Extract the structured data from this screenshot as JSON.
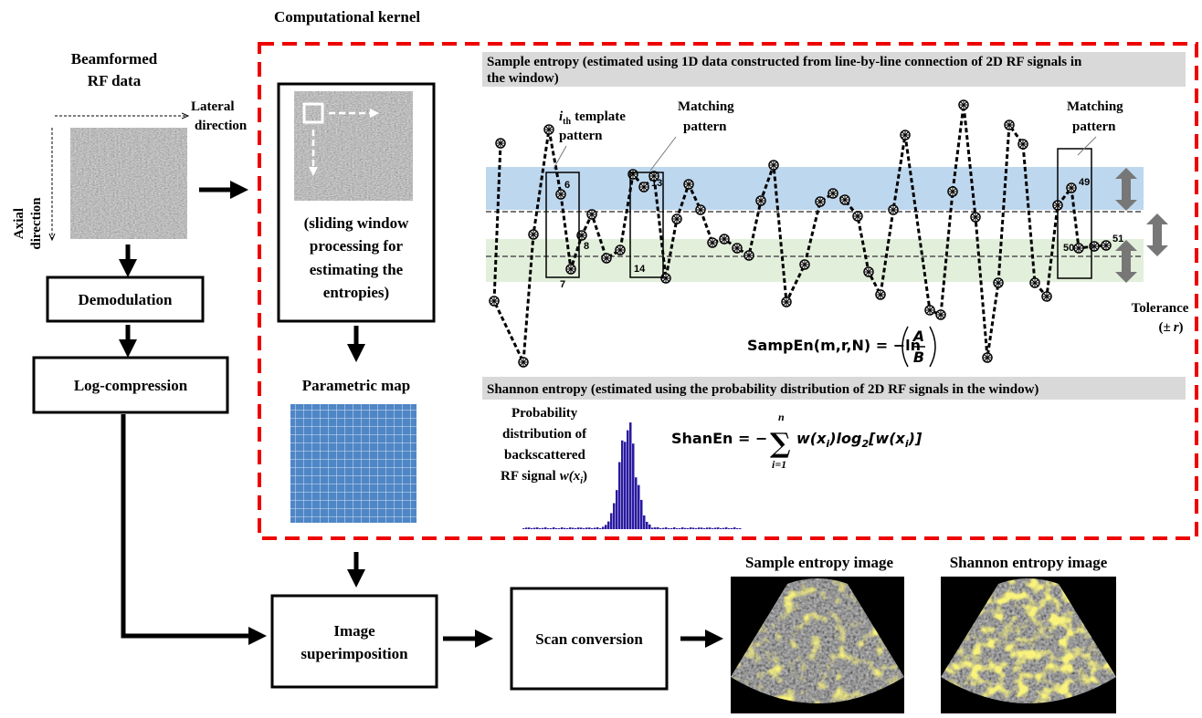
{
  "title": "Computational kernel",
  "input": {
    "title": [
      "Beamformed",
      "RF data"
    ],
    "lateral": [
      "Lateral",
      "direction"
    ],
    "axial": [
      "Axial",
      "direction"
    ]
  },
  "steps": {
    "demodulation": "Demodulation",
    "log_compression": "Log-compression",
    "superimposition": [
      "Image",
      "superimposition"
    ],
    "scan_conversion": "Scan conversion"
  },
  "kernel": {
    "sliding_window": [
      "(sliding window",
      "processing for",
      "estimating the",
      "entropies)"
    ],
    "parametric_map": "Parametric map"
  },
  "sample_entropy": {
    "header": [
      "Sample entropy (estimated using 1D data constructed from line-by-line connection of 2D RF signals in",
      "the window)"
    ],
    "template": {
      "index": "i",
      "sub": "th",
      "lines": [
        "template",
        "pattern"
      ]
    },
    "matching_1": [
      "Matching",
      "pattern"
    ],
    "matching_2": [
      "Matching",
      "pattern"
    ],
    "point_labels": [
      6,
      7,
      8,
      13,
      14,
      49,
      50,
      51
    ],
    "tolerance": {
      "label": "Tolerance",
      "open": "(±",
      "r": "r",
      "close": ")"
    },
    "formula": {
      "lhs": "SampEn(m,r,N) = −ln",
      "numerator": "A",
      "denominator": "B"
    }
  },
  "shannon_entropy": {
    "header": "Shannon entropy (estimated using the probability distribution of 2D RF signals in the window)",
    "distribution_label": {
      "lines": [
        "Probability",
        "distribution of",
        "backscattered"
      ],
      "last": "RF signal",
      "w": "w(x",
      "sub": "i",
      "close": ")"
    },
    "formula": {
      "lhs": "ShanEn = −",
      "sum": "∑",
      "upper": "n",
      "lower": "i=1",
      "w1": "w(x",
      "s1": "i",
      "log": ")log",
      "base": "2",
      "w2": "[w(x",
      "s2": "i",
      "end": ")]"
    }
  },
  "outputs": [
    "Sample entropy image",
    "Shannon entropy image"
  ]
}
